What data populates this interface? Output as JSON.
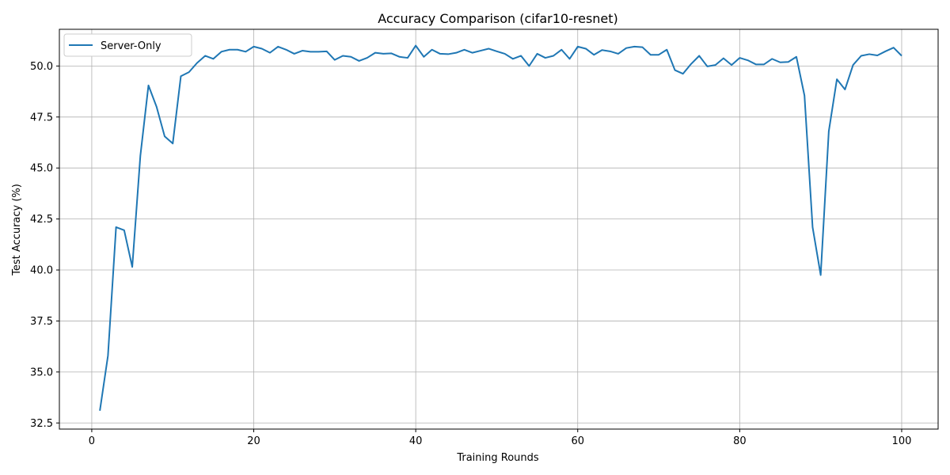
{
  "chart_data": {
    "type": "line",
    "title": "Accuracy Comparison (cifar10-resnet)",
    "xlabel": "Training Rounds",
    "ylabel": "Test Accuracy (%)",
    "xlim": [
      -4,
      104.5
    ],
    "ylim": [
      32.2,
      51.8
    ],
    "xticks": [
      0,
      20,
      40,
      60,
      80,
      100
    ],
    "yticks": [
      32.5,
      35.0,
      37.5,
      40.0,
      42.5,
      45.0,
      47.5,
      50.0
    ],
    "xtick_labels": [
      "0",
      "20",
      "40",
      "60",
      "80",
      "100"
    ],
    "ytick_labels": [
      "32.5",
      "35.0",
      "37.5",
      "40.0",
      "42.5",
      "45.0",
      "47.5",
      "50.0"
    ],
    "grid": true,
    "legend_position": "top-left",
    "series": [
      {
        "name": "Server-Only",
        "color": "#1f77b4",
        "x": [
          1,
          2,
          3,
          4,
          5,
          6,
          7,
          8,
          9,
          10,
          11,
          12,
          13,
          14,
          15,
          16,
          17,
          18,
          19,
          20,
          21,
          22,
          23,
          24,
          25,
          26,
          27,
          28,
          29,
          30,
          31,
          32,
          33,
          34,
          35,
          36,
          37,
          38,
          39,
          40,
          41,
          42,
          43,
          44,
          45,
          46,
          47,
          48,
          49,
          50,
          51,
          52,
          53,
          54,
          55,
          56,
          57,
          58,
          59,
          60,
          61,
          62,
          63,
          64,
          65,
          66,
          67,
          68,
          69,
          70,
          71,
          72,
          73,
          74,
          75,
          76,
          77,
          78,
          79,
          80,
          81,
          82,
          83,
          84,
          85,
          86,
          87,
          88,
          89,
          90,
          91,
          92,
          93,
          94,
          95,
          96,
          97,
          98,
          99,
          100
        ],
        "y": [
          33.1,
          35.8,
          42.1,
          41.95,
          40.15,
          45.6,
          49.05,
          48.0,
          46.55,
          46.2,
          49.5,
          49.7,
          50.15,
          50.5,
          50.35,
          50.7,
          50.8,
          50.8,
          50.7,
          50.95,
          50.85,
          50.65,
          50.95,
          50.8,
          50.6,
          50.75,
          50.7,
          50.7,
          50.72,
          50.3,
          50.5,
          50.45,
          50.25,
          50.4,
          50.65,
          50.6,
          50.62,
          50.45,
          50.4,
          51.0,
          50.45,
          50.8,
          50.6,
          50.58,
          50.65,
          50.8,
          50.65,
          50.75,
          50.85,
          50.72,
          50.6,
          50.35,
          50.5,
          50.0,
          50.6,
          50.4,
          50.5,
          50.8,
          50.35,
          50.95,
          50.85,
          50.55,
          50.78,
          50.72,
          50.6,
          50.88,
          50.95,
          50.92,
          50.55,
          50.55,
          50.8,
          49.8,
          49.62,
          50.1,
          50.5,
          49.98,
          50.05,
          50.38,
          50.05,
          50.4,
          50.28,
          50.08,
          50.08,
          50.35,
          50.18,
          50.2,
          50.45,
          48.55,
          42.1,
          39.75,
          46.8,
          49.35,
          48.85,
          50.05,
          50.5,
          50.58,
          50.52,
          50.72,
          50.9,
          50.5
        ]
      }
    ]
  }
}
